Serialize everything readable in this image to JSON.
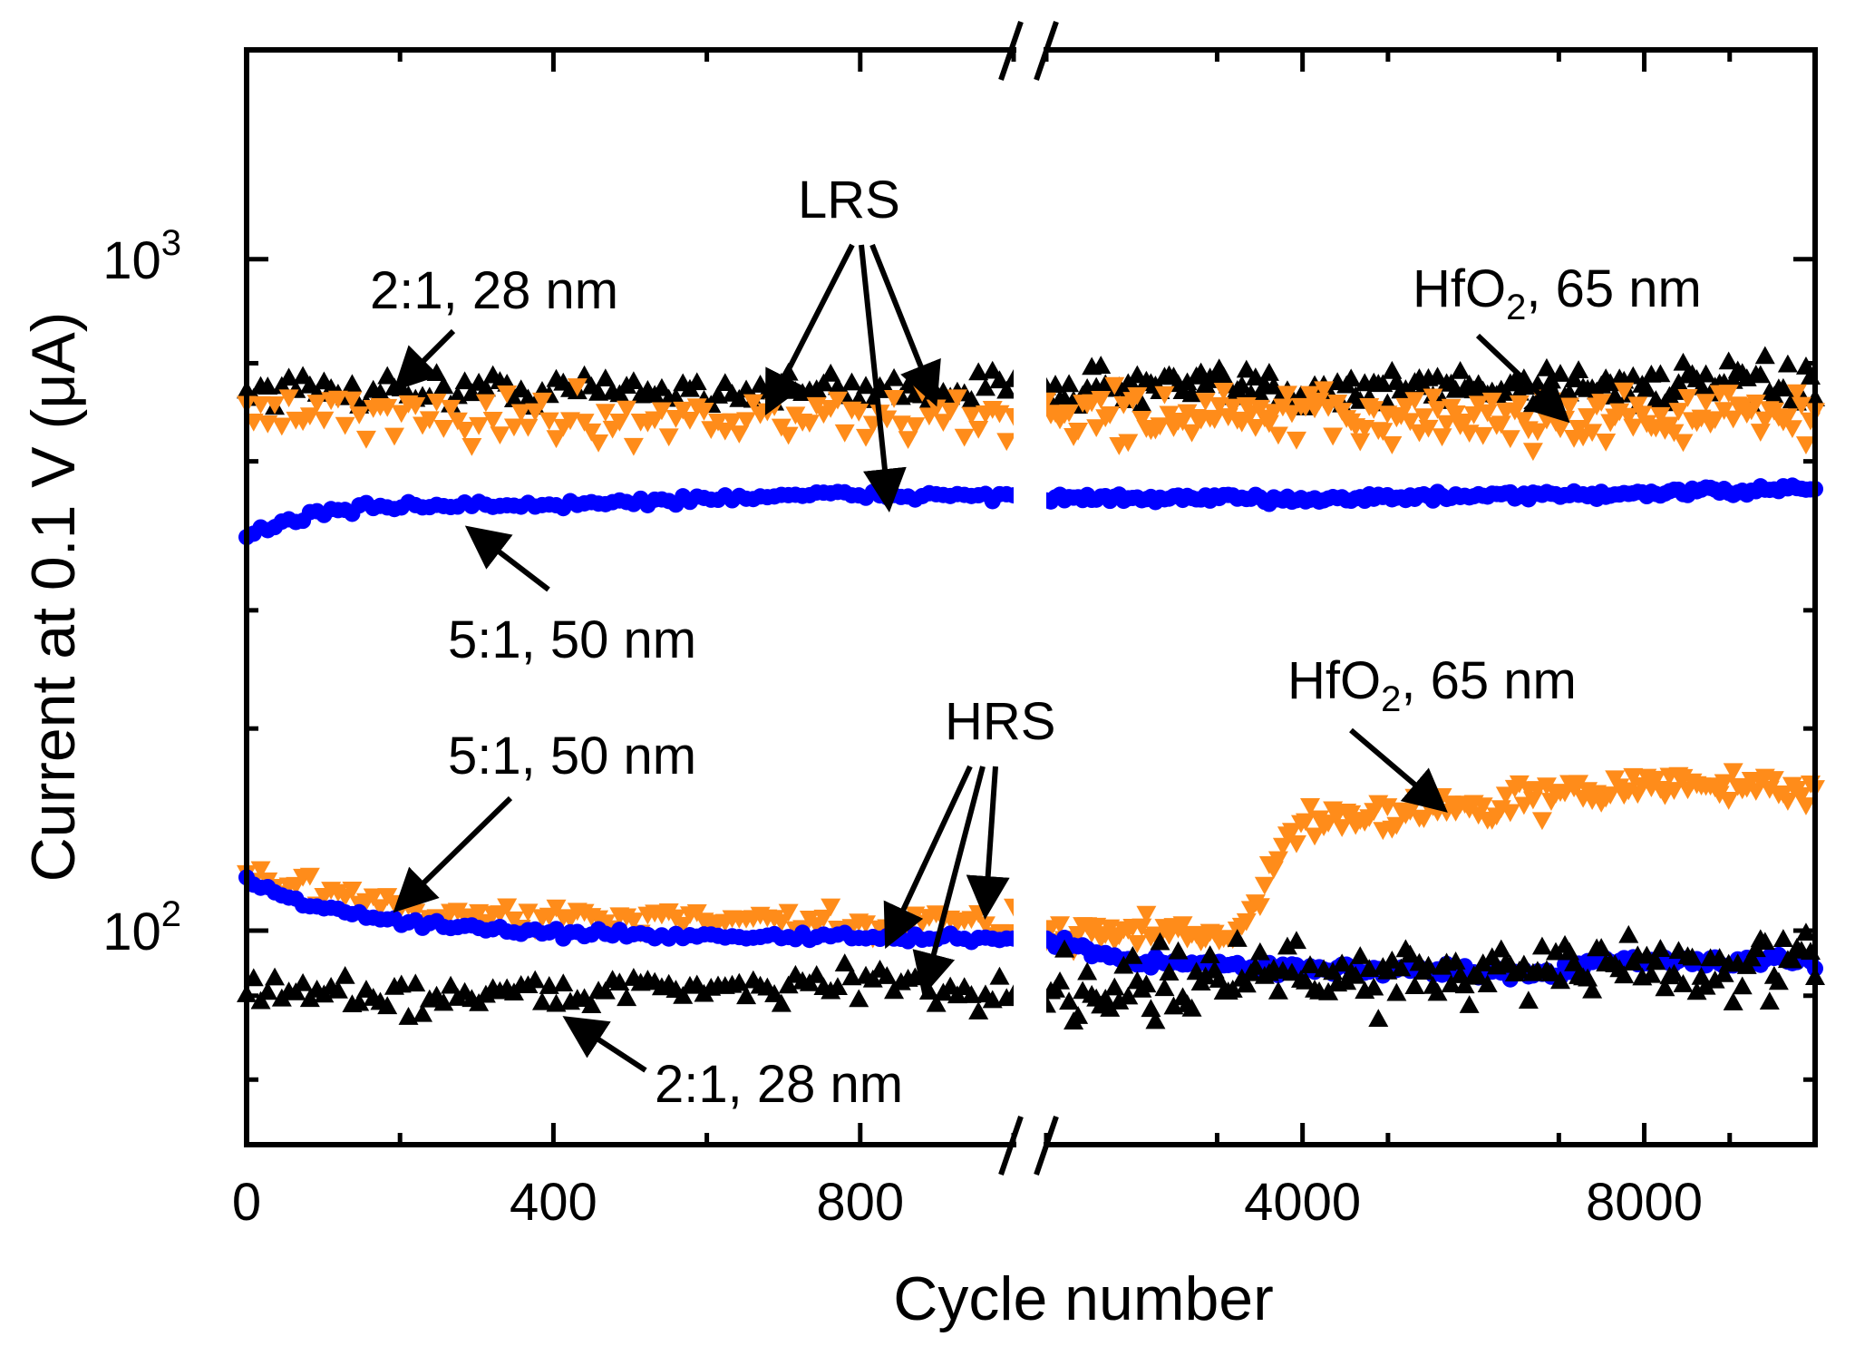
{
  "chart_data": {
    "type": "scatter",
    "title": "",
    "xlabel": "Cycle number",
    "ylabel": "Current at 0.1 V (μA)",
    "y_scale": "log",
    "ylim": [
      48,
      2050
    ],
    "y_major_ticks": [
      {
        "value": 100,
        "base": "10",
        "exp": "2"
      },
      {
        "value": 1000,
        "base": "10",
        "exp": "3"
      }
    ],
    "y_minor_ticks": [
      60,
      80,
      200,
      300,
      500,
      700
    ],
    "x_break": true,
    "x_segments": [
      {
        "xlim": [
          0,
          1000
        ],
        "ticks": [
          0,
          400,
          800
        ],
        "tick_labels": [
          "0",
          "400",
          "800"
        ]
      },
      {
        "xlim": [
          1000,
          10000
        ],
        "ticks": [
          4000,
          8000
        ],
        "tick_labels": [
          "4000",
          "8000"
        ]
      }
    ],
    "series": [
      {
        "name": "2:1, 28 nm LRS",
        "marker": "triangle-up",
        "color": "#000000",
        "segment1": {
          "x_range": [
            0,
            1000
          ],
          "y_mean": 640,
          "y_spread": 0.025
        },
        "segment2": {
          "x_range": [
            1000,
            10000
          ],
          "points": [
            [
              1000,
              650
            ],
            [
              4000,
              640
            ],
            [
              7000,
              650
            ],
            [
              10000,
              650
            ]
          ],
          "y_spread": 0.03
        }
      },
      {
        "name": "HfO2, 65 nm LRS",
        "marker": "triangle-down",
        "color": "#ff8c1a",
        "segment1": {
          "x_range": [
            0,
            1000
          ],
          "y_mean": 580,
          "y_spread": 0.035
        },
        "segment2": {
          "x_range": [
            1000,
            10000
          ],
          "points": [
            [
              1000,
              590
            ],
            [
              4000,
              580
            ],
            [
              7000,
              580
            ],
            [
              10000,
              585
            ]
          ],
          "y_spread": 0.04
        }
      },
      {
        "name": "5:1, 50 nm LRS",
        "marker": "circle",
        "color": "#0000ff",
        "segment1": {
          "x_range": [
            0,
            1000
          ],
          "points": [
            [
              0,
              390
            ],
            [
              100,
              420
            ],
            [
              200,
              430
            ],
            [
              400,
              430
            ],
            [
              700,
              445
            ],
            [
              1000,
              445
            ]
          ],
          "y_spread": 0.006
        },
        "segment2": {
          "x_range": [
            1000,
            10000
          ],
          "points": [
            [
              1000,
              440
            ],
            [
              4000,
              440
            ],
            [
              7000,
              445
            ],
            [
              10000,
              455
            ]
          ],
          "y_spread": 0.006
        }
      },
      {
        "name": "HfO2, 65 nm HRS",
        "marker": "triangle-down",
        "color": "#ff8c1a",
        "segment1": {
          "x_range": [
            0,
            1000
          ],
          "points": [
            [
              0,
              120
            ],
            [
              100,
              115
            ],
            [
              250,
              105
            ],
            [
              500,
              104
            ],
            [
              800,
              102
            ],
            [
              1000,
              103
            ]
          ],
          "y_spread": 0.02
        },
        "segment2": {
          "x_range": [
            1000,
            10000
          ],
          "points": [
            [
              1000,
              100
            ],
            [
              3000,
              100
            ],
            [
              3400,
              103
            ],
            [
              3800,
              135
            ],
            [
              4200,
              148
            ],
            [
              6000,
              152
            ],
            [
              8000,
              165
            ],
            [
              10000,
              163
            ]
          ],
          "y_spread": 0.025
        }
      },
      {
        "name": "5:1, 50 nm HRS",
        "marker": "circle",
        "color": "#0000ff",
        "segment1": {
          "x_range": [
            0,
            1000
          ],
          "points": [
            [
              0,
              118
            ],
            [
              100,
              108
            ],
            [
              200,
              103
            ],
            [
              400,
              99
            ],
            [
              700,
              98
            ],
            [
              1000,
              97
            ]
          ],
          "y_spread": 0.006
        },
        "segment2": {
          "x_range": [
            1000,
            10000
          ],
          "points": [
            [
              1000,
              97
            ],
            [
              2000,
              90
            ],
            [
              4000,
              88
            ],
            [
              7000,
              86
            ],
            [
              7300,
              90
            ],
            [
              10000,
              90
            ]
          ],
          "y_spread": 0.008
        }
      },
      {
        "name": "2:1, 28 nm HRS",
        "marker": "triangle-up",
        "color": "#000000",
        "segment1": {
          "x_range": [
            0,
            1000
          ],
          "points": [
            [
              0,
              82
            ],
            [
              200,
              80
            ],
            [
              500,
              82
            ],
            [
              800,
              84
            ],
            [
              1000,
              80
            ]
          ],
          "y_spread": 0.025
        },
        "segment2": {
          "x_range": [
            1000,
            10000
          ],
          "points": [
            [
              1000,
              82
            ],
            [
              4000,
              86
            ],
            [
              7000,
              88
            ],
            [
              10000,
              88
            ]
          ],
          "y_spread": 0.05
        }
      }
    ],
    "annotations": [
      {
        "id": "lrs",
        "text": "LRS"
      },
      {
        "id": "hrs",
        "text": "HRS"
      },
      {
        "id": "lrs-21",
        "text": "2:1, 28 nm"
      },
      {
        "id": "lrs-51",
        "text": "5:1, 50 nm"
      },
      {
        "id": "lrs-hfo2",
        "text_main": "HfO",
        "text_sub": "2",
        "text_rest": ", 65 nm"
      },
      {
        "id": "hrs-51",
        "text": "5:1, 50 nm"
      },
      {
        "id": "hrs-21",
        "text": "2:1, 28 nm"
      },
      {
        "id": "hrs-hfo2",
        "text_main": "HfO",
        "text_sub": "2",
        "text_rest": ", 65 nm"
      }
    ]
  }
}
